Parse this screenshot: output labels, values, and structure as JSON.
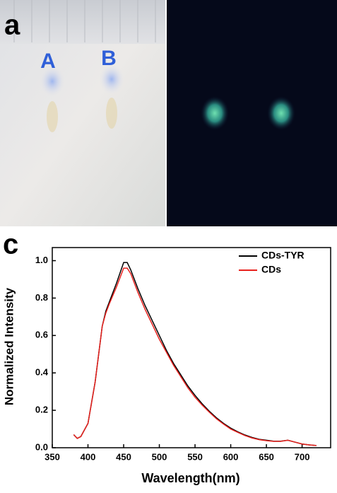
{
  "photo_panel": {
    "label": "a",
    "spot_labels": [
      "A",
      "B"
    ]
  },
  "chart_data": {
    "type": "line",
    "label": "c",
    "xlabel": "Wavelength(nm)",
    "ylabel": "Normalized Intensity",
    "x": [
      380,
      385,
      390,
      400,
      410,
      420,
      425,
      430,
      440,
      450,
      455,
      460,
      470,
      480,
      490,
      500,
      510,
      520,
      530,
      540,
      550,
      560,
      570,
      580,
      590,
      600,
      610,
      620,
      630,
      640,
      650,
      660,
      670,
      680,
      690,
      700,
      710,
      720
    ],
    "series": [
      {
        "name": "CDs-TYR",
        "color": "#000000",
        "values": [
          0.07,
          0.05,
          0.06,
          0.13,
          0.35,
          0.65,
          0.73,
          0.78,
          0.88,
          0.99,
          0.99,
          0.95,
          0.85,
          0.76,
          0.68,
          0.6,
          0.52,
          0.45,
          0.39,
          0.33,
          0.28,
          0.235,
          0.195,
          0.16,
          0.13,
          0.105,
          0.085,
          0.068,
          0.055,
          0.045,
          0.04,
          0.035,
          0.035,
          0.04,
          0.03,
          0.02,
          0.015,
          0.012
        ]
      },
      {
        "name": "CDs",
        "color": "#e8211d",
        "values": [
          0.07,
          0.05,
          0.06,
          0.13,
          0.35,
          0.65,
          0.72,
          0.77,
          0.86,
          0.96,
          0.96,
          0.93,
          0.83,
          0.74,
          0.66,
          0.58,
          0.51,
          0.44,
          0.38,
          0.32,
          0.27,
          0.228,
          0.19,
          0.155,
          0.126,
          0.1,
          0.082,
          0.065,
          0.052,
          0.043,
          0.038,
          0.034,
          0.034,
          0.04,
          0.03,
          0.02,
          0.015,
          0.012
        ]
      }
    ],
    "xlim": [
      350,
      740
    ],
    "ylim": [
      0,
      1.07
    ],
    "xticks": [
      350,
      400,
      450,
      500,
      550,
      600,
      650,
      700
    ],
    "yticks": [
      {
        "value": 0,
        "label": "0.0"
      },
      0.2,
      0.4,
      0.6,
      0.8,
      {
        "value": 1,
        "label": "1.0"
      }
    ],
    "legend": "upper right"
  }
}
